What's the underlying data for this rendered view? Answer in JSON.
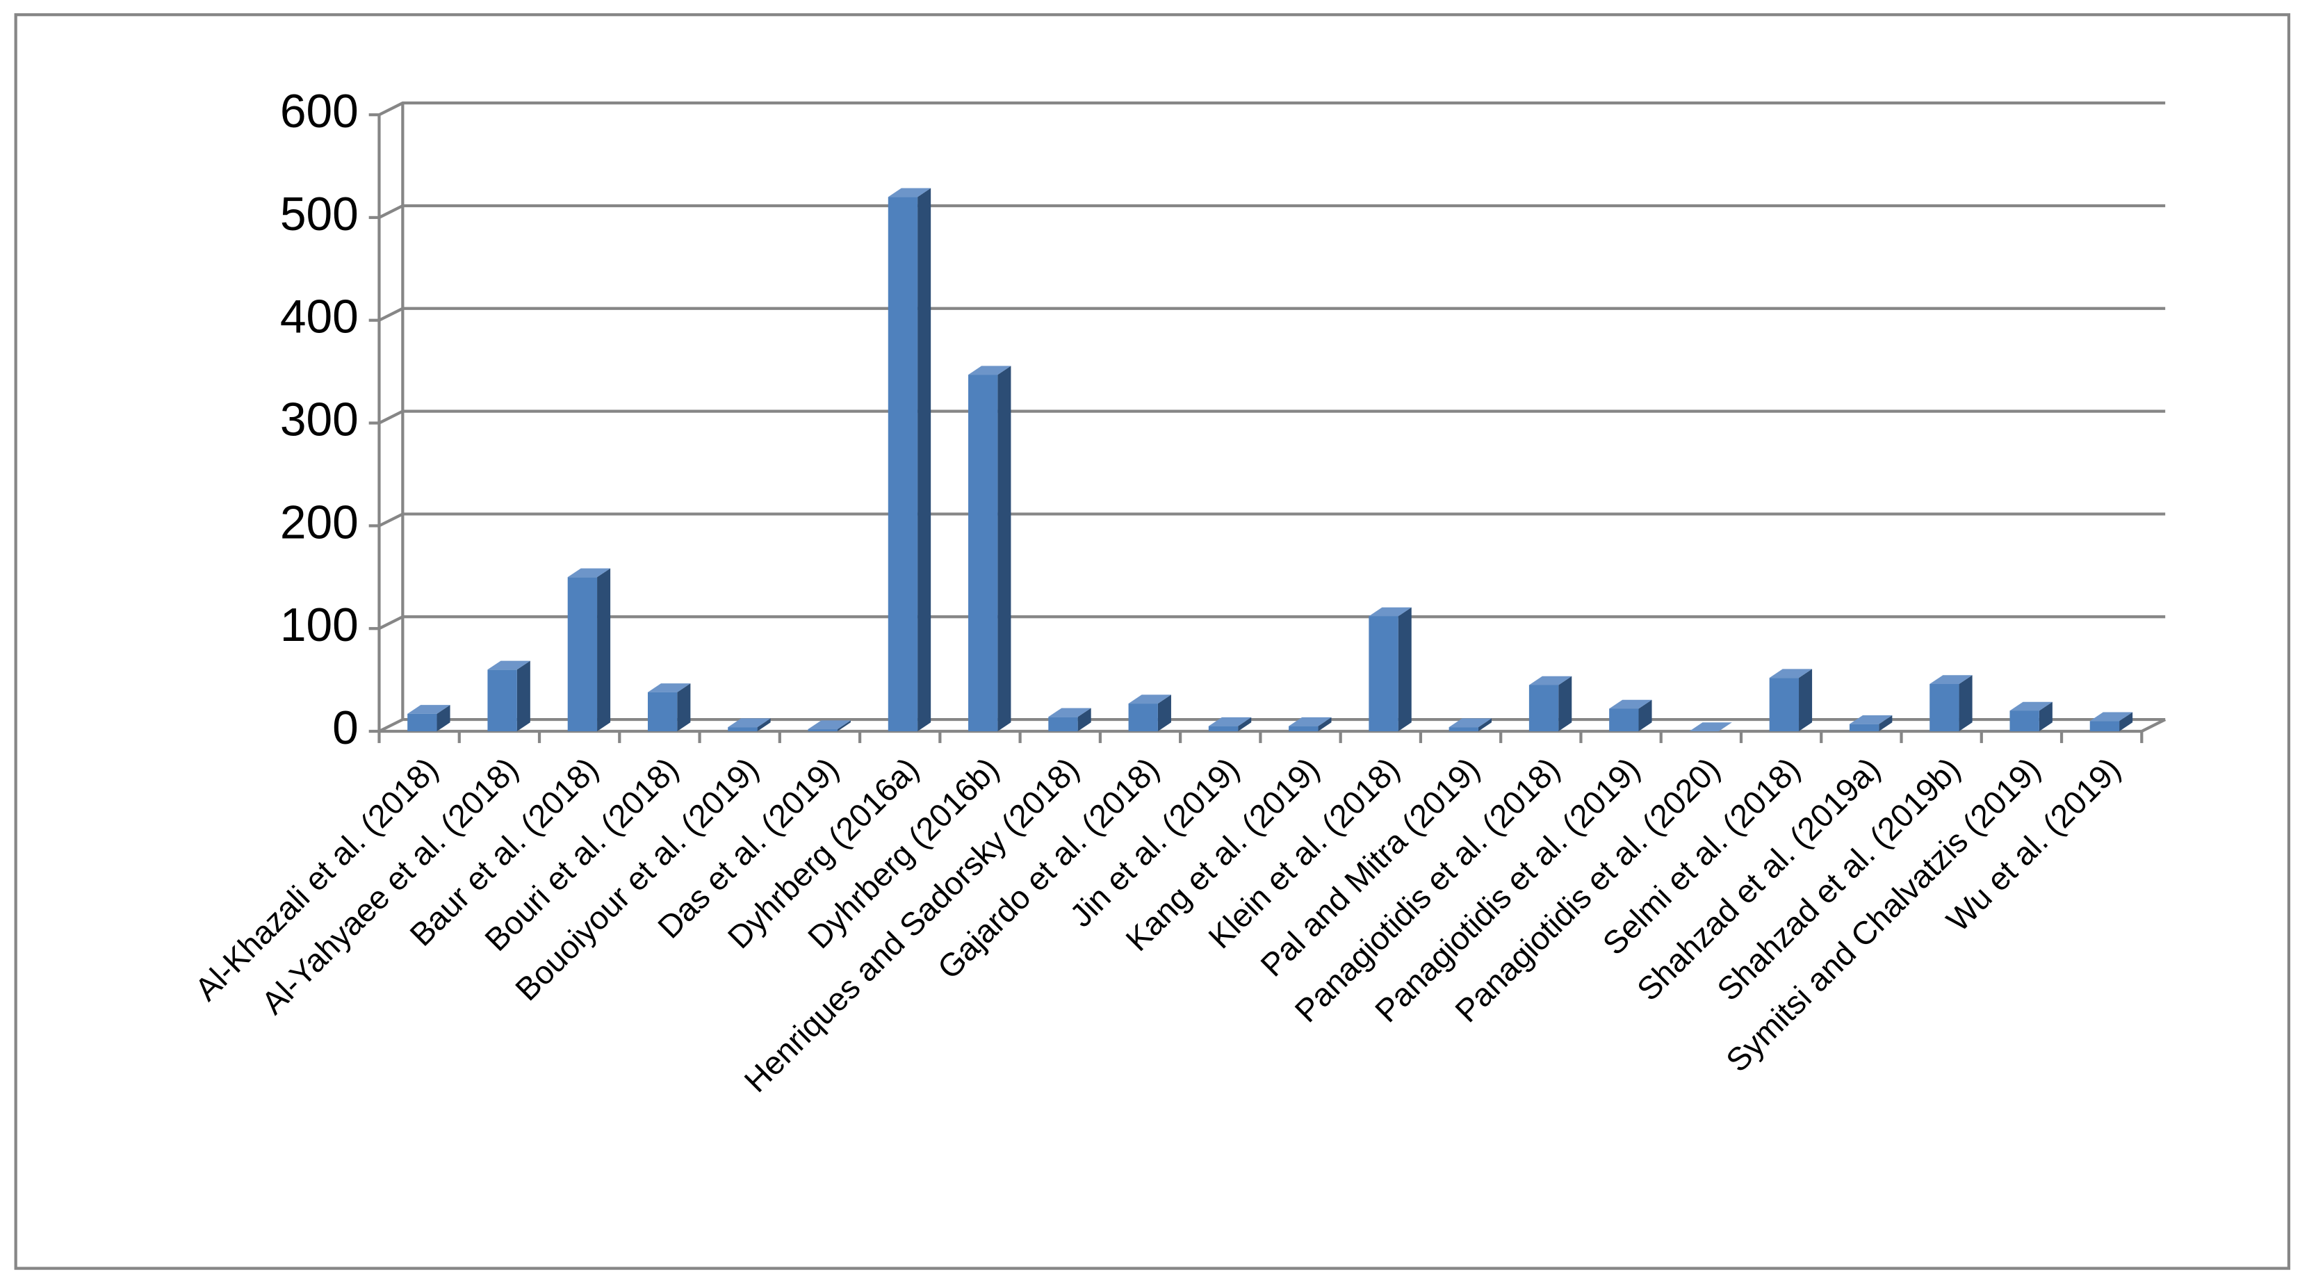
{
  "chart_data": {
    "type": "bar3d",
    "categories": [
      "Al-Khazali et al. (2018)",
      "Al-Yahyaee et al. (2018)",
      "Baur et al. (2018)",
      "Bouri et al. (2018)",
      "Bouoiyour et al. (2019)",
      "Das et al. (2019)",
      "Dyhrberg (2016a)",
      "Dyhrberg (2016b)",
      "Henriques and Sadorsky (2018)",
      "Gajardo et al. (2018)",
      "Jin et al. (2019)",
      "Kang et al. (2019)",
      "Klein et al. (2018)",
      "Pal and Mitra (2019)",
      "Panagiotidis et al. (2018)",
      "Panagiotidis et al. (2019)",
      "Panagiotidis et al. (2020)",
      "Selmi et al. (2018)",
      "Shahzad et al. (2019a)",
      "Shahzad et al. (2019b)",
      "Symitsi and Chalvatzis (2019)",
      "Wu et al. (2019)"
    ],
    "values": [
      17,
      60,
      150,
      38,
      4,
      2,
      520,
      347,
      14,
      27,
      5,
      5,
      112,
      4,
      45,
      22,
      0,
      52,
      7,
      46,
      20,
      10
    ],
    "color": "#4f81bd",
    "ylim": [
      0,
      600
    ],
    "yticks": [
      0,
      100,
      200,
      300,
      400,
      500,
      600
    ],
    "grid": true
  }
}
